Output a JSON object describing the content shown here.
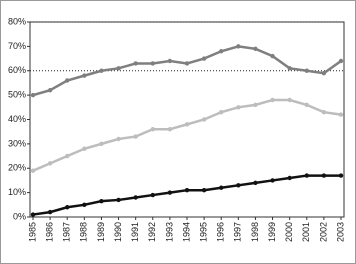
{
  "chart_data": {
    "type": "line",
    "categories": [
      "1985",
      "1986",
      "1987",
      "1988",
      "1989",
      "1990",
      "1991",
      "1992",
      "1993",
      "1994",
      "1995",
      "1996",
      "1997",
      "1998",
      "1999",
      "2000",
      "2001",
      "2002",
      "2003"
    ],
    "series": [
      {
        "color": "#7f7f7f",
        "values": [
          50,
          52,
          56,
          58,
          60,
          61,
          63,
          63,
          64,
          63,
          65,
          68,
          70,
          69,
          66,
          61,
          60,
          59,
          64
        ]
      },
      {
        "color": "#bdbdbd",
        "values": [
          19,
          22,
          25,
          28,
          30,
          32,
          33,
          36,
          36,
          38,
          40,
          43,
          45,
          46,
          48,
          48,
          46,
          43,
          42
        ]
      },
      {
        "color": "#111111",
        "values": [
          1,
          2,
          4,
          5,
          6.5,
          7,
          8,
          9,
          10,
          11,
          11,
          12,
          13,
          14,
          15,
          16,
          17,
          17,
          17
        ]
      }
    ],
    "ylim": [
      0,
      80
    ],
    "yticks": [
      {
        "value": 0,
        "label": "0%"
      },
      {
        "value": 10,
        "label": "10%"
      },
      {
        "value": 20,
        "label": "20%"
      },
      {
        "value": 30,
        "label": "30%"
      },
      {
        "value": 40,
        "label": "40%"
      },
      {
        "value": 50,
        "label": "50%"
      },
      {
        "value": 60,
        "label": "60%"
      },
      {
        "value": 70,
        "label": "70%"
      },
      {
        "value": 80,
        "label": "80%"
      }
    ],
    "gridlines": [
      60,
      80
    ]
  }
}
